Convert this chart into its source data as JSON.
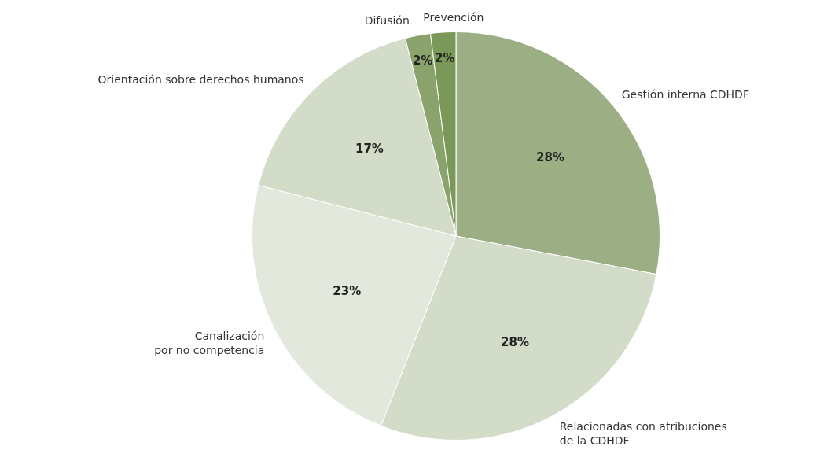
{
  "chart_data": {
    "type": "pie",
    "categories": [
      "Gestión interna CDHDF",
      "Relacionadas con atribuciones\nde la CDHDF",
      "Canalización\npor no competencia",
      "Orientación sobre derechos humanos",
      "Difusión",
      "Prevención"
    ],
    "values": [
      28,
      28,
      23,
      17,
      2,
      2
    ],
    "colors": [
      "#9caf84",
      "#d3dcc8",
      "#e3e8dc",
      "#d3dcc8",
      "#8aa36c",
      "#7a9858"
    ],
    "value_labels": [
      "28%",
      "28%",
      "23%",
      "17%",
      "2%",
      "2%"
    ],
    "legend": false
  }
}
